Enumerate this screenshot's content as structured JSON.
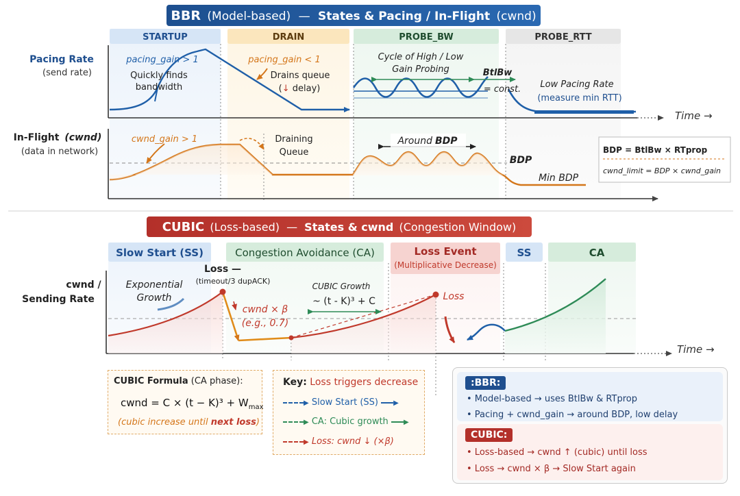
{
  "bbr": {
    "title_main": "BBR",
    "title_sub": "(Model-based)",
    "title_dash": "—",
    "title_states": "States & Pacing / In-Flight",
    "title_cwnd": "(cwnd)",
    "phases": [
      "STARTUP",
      "DRAIN",
      "PROBE_BW",
      "PROBE_RTT"
    ],
    "pacing_label": "Pacing Rate",
    "pacing_sub": "(send rate)",
    "inflight_label": "In-Flight",
    "inflight_cwnd": "(cwnd)",
    "inflight_sub": "(data in network)",
    "time_label": "Time →",
    "ann": {
      "pacing_gain_up": "pacing_gain > 1",
      "finds_1": "Quickly finds",
      "finds_2": "bandwidth",
      "pacing_gain_down": "pacing_gain < 1",
      "drains_1": "Drains queue",
      "drains_2a": "(",
      "drains_arrow": "↓",
      "drains_2b": " delay)",
      "cycle_1": "Cycle of High / Low",
      "cycle_2": "Gain Probing",
      "btlbw": "BtlBw",
      "const": "= const.",
      "low_1": "Low Pacing Rate",
      "low_2": "(measure min RTT)",
      "cwnd_gain": "cwnd_gain > 1",
      "draining_1": "Draining",
      "draining_2": "Queue",
      "around": "Around",
      "around_bdp": "BDP",
      "bdp": "BDP",
      "min_bdp": "Min BDP"
    },
    "formula_box": {
      "line1": "BDP = BtlBw × RTprop",
      "line2": "cwnd_limit = BDP × cwnd_gain"
    }
  },
  "cubic": {
    "title_main": "CUBIC",
    "title_sub": "(Loss-based)",
    "title_dash": "—",
    "title_states": "States & cwnd",
    "title_cw": "(Congestion Window)",
    "phases": [
      "Slow Start (SS)",
      "Congestion Avoidance (CA)",
      "Loss Event",
      "SS",
      "CA"
    ],
    "loss_event_sub": "(Multiplicative Decrease)",
    "axis_label_1": "cwnd /",
    "axis_label_2": "Sending Rate",
    "time_label": "Time →",
    "ann": {
      "exp_1": "Exponential",
      "exp_2": "Growth",
      "loss_title": "Loss —",
      "loss_sub": "(timeout/3 dupACK)",
      "cwnd_beta": "cwnd × β",
      "eg": "(e.g., 0.7)",
      "growth_title": "CUBIC Growth",
      "growth_formula": "~ (t - K)³ + C",
      "loss2": "Loss"
    }
  },
  "formula_panel": {
    "title": "CUBIC Formula",
    "title_suffix": " (CA phase):",
    "formula": "cwnd = C × (t − K)³ + W",
    "formula_sub": "max",
    "note_a": "(cubic increase until ",
    "note_b": "next loss",
    "note_c": ")"
  },
  "key_panel": {
    "title": "Key:",
    "title_red": "Loss triggers decrease",
    "items": [
      "Slow Start (SS)",
      "CA: Cubic growth",
      "Loss: cwnd ↓ (×β)"
    ]
  },
  "compare_panel": {
    "bbr_tag": ":BBR:",
    "bbr_items": [
      "• Model-based → uses BtlBw & RTprop",
      "• Pacing + cwnd_gain → around BDP, low delay"
    ],
    "cubic_tag": "CUBIC:",
    "cubic_items": [
      "• Loss-based → cwnd ↑ (cubic) until loss",
      "• Loss → cwnd × β → Slow Start again"
    ]
  },
  "colors": {
    "blue": "#1f5fa8",
    "orange": "#d4761a",
    "green": "#2e8b57",
    "red": "#c0392b",
    "dark_red": "#a32a25",
    "axis": "#333333"
  }
}
